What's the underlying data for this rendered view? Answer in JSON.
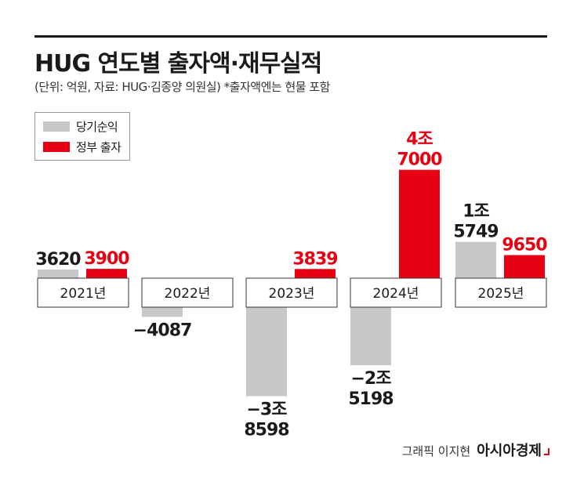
{
  "title": "HUG 연도별 출자액·재무실적",
  "subtitle": "(단위: 억원, 자료: HUG·김종양 의원실)  *출자액엔는 현물 포함",
  "legend": [
    {
      "label": "당기순익",
      "color": "#c8c8c8"
    },
    {
      "label": "정부 출자",
      "color": "#e60012"
    }
  ],
  "credit": {
    "text": "그래픽 이지현",
    "brand": "아시아경제"
  },
  "chart_data": {
    "type": "bar",
    "categories": [
      "2021년",
      "2022년",
      "2023년",
      "2024년",
      "2025년"
    ],
    "series": [
      {
        "name": "당기순익",
        "color": "#c8c8c8",
        "values": [
          3620,
          -4087,
          -38598,
          -25198,
          15749
        ],
        "labels": [
          [
            "3620"
          ],
          [
            "−4087"
          ],
          [
            "−3조",
            "8598"
          ],
          [
            "−2조",
            "5198"
          ],
          [
            "1조",
            "5749"
          ]
        ]
      },
      {
        "name": "정부 출자",
        "color": "#e60012",
        "values": [
          3900,
          null,
          3839,
          47000,
          9650
        ],
        "labels": [
          [
            "3900"
          ],
          [],
          [
            "3839"
          ],
          [
            "4조",
            "7000"
          ],
          [
            "9650"
          ]
        ]
      }
    ]
  }
}
